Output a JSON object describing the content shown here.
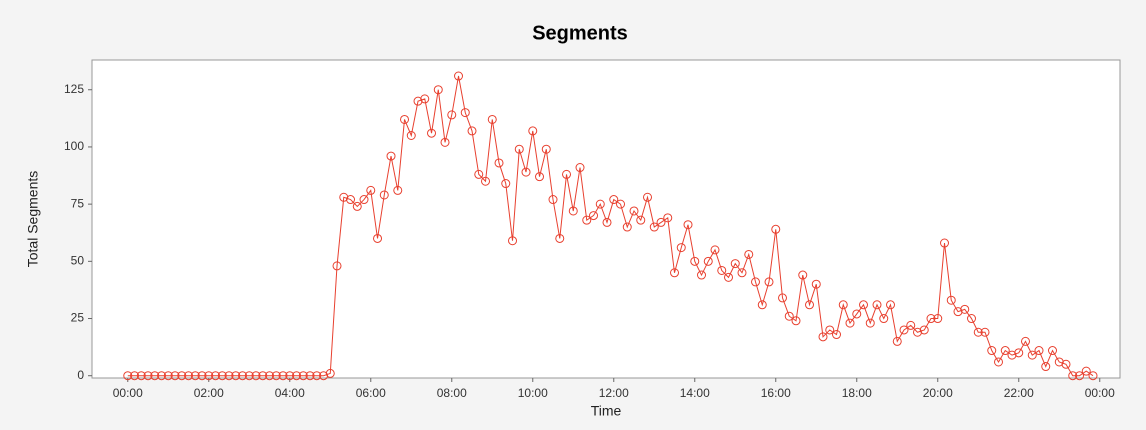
{
  "chart_data": {
    "type": "line",
    "title": "Segments",
    "x_label": "Time",
    "y_label": "Total Segments",
    "x": [
      0,
      10,
      20,
      30,
      40,
      50,
      60,
      70,
      80,
      90,
      100,
      110,
      120,
      130,
      140,
      150,
      160,
      170,
      180,
      190,
      200,
      210,
      220,
      230,
      240,
      250,
      260,
      270,
      280,
      290,
      300,
      310,
      320,
      330,
      340,
      350,
      360,
      370,
      380,
      390,
      400,
      410,
      420,
      430,
      440,
      450,
      460,
      470,
      480,
      490,
      500,
      510,
      520,
      530,
      540,
      550,
      560,
      570,
      580,
      590,
      600,
      610,
      620,
      630,
      640,
      650,
      660,
      670,
      680,
      690,
      700,
      710,
      720,
      730,
      740,
      750,
      760,
      770,
      780,
      790,
      800,
      810,
      820,
      830,
      840,
      850,
      860,
      870,
      880,
      890,
      900,
      910,
      920,
      930,
      940,
      950,
      960,
      970,
      980,
      990,
      1000,
      1010,
      1020,
      1030,
      1040,
      1050,
      1060,
      1070,
      1080,
      1090,
      1100,
      1110,
      1120,
      1130,
      1140,
      1150,
      1160,
      1170,
      1180,
      1190,
      1200,
      1210,
      1220,
      1230,
      1240,
      1250,
      1260,
      1270,
      1280,
      1290,
      1300,
      1310,
      1320,
      1330,
      1340,
      1350,
      1360,
      1370,
      1380,
      1390,
      1400,
      1410,
      1420,
      1430
    ],
    "series": [
      {
        "name": "Total Segments",
        "color": "#e8402f",
        "values": [
          0,
          0,
          0,
          0,
          0,
          0,
          0,
          0,
          0,
          0,
          0,
          0,
          0,
          0,
          0,
          0,
          0,
          0,
          0,
          0,
          0,
          0,
          0,
          0,
          0,
          0,
          0,
          0,
          0,
          0,
          1,
          48,
          78,
          77,
          74,
          77,
          81,
          60,
          79,
          96,
          81,
          112,
          105,
          120,
          121,
          106,
          125,
          102,
          114,
          131,
          115,
          107,
          88,
          85,
          112,
          93,
          84,
          59,
          99,
          89,
          107,
          87,
          99,
          77,
          60,
          88,
          72,
          91,
          68,
          70,
          75,
          67,
          77,
          75,
          65,
          72,
          68,
          78,
          65,
          67,
          69,
          45,
          56,
          66,
          50,
          44,
          50,
          55,
          46,
          43,
          49,
          45,
          53,
          41,
          31,
          41,
          64,
          34,
          26,
          24,
          44,
          31,
          40,
          17,
          20,
          18,
          31,
          23,
          27,
          31,
          23,
          31,
          25,
          31,
          15,
          20,
          22,
          19,
          20,
          25,
          25,
          58,
          33,
          28,
          29,
          25,
          19,
          19,
          11,
          6,
          11,
          9,
          10,
          15,
          9,
          11,
          4,
          11,
          6,
          5,
          0,
          0,
          2,
          0
        ]
      }
    ],
    "xlim": [
      -53,
      1470
    ],
    "xticks": [
      {
        "value": 0,
        "label": "00:00"
      },
      {
        "value": 120,
        "label": "02:00"
      },
      {
        "value": 240,
        "label": "04:00"
      },
      {
        "value": 360,
        "label": "06:00"
      },
      {
        "value": 480,
        "label": "08:00"
      },
      {
        "value": 600,
        "label": "10:00"
      },
      {
        "value": 720,
        "label": "12:00"
      },
      {
        "value": 840,
        "label": "14:00"
      },
      {
        "value": 960,
        "label": "16:00"
      },
      {
        "value": 1080,
        "label": "18:00"
      },
      {
        "value": 1200,
        "label": "20:00"
      },
      {
        "value": 1320,
        "label": "22:00"
      },
      {
        "value": 1440,
        "label": "00:00"
      }
    ],
    "ylim": [
      -1,
      138
    ],
    "yticks": [
      0,
      25,
      50,
      75,
      100,
      125
    ],
    "grid": false
  }
}
